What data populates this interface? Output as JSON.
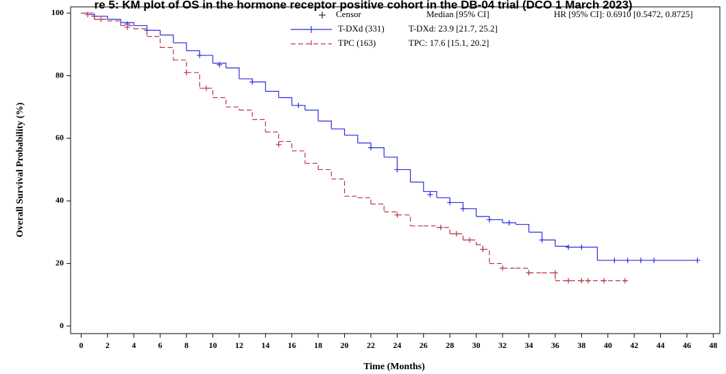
{
  "chart_data": {
    "type": "km",
    "title": "re 5: KM plot of OS in the hormone receptor positive cohort in the DB-04 trial (DCO 1 March 2023)",
    "x_label": "Time (Months)",
    "y_label": "Overall Survival Probability (%)",
    "censor_label": "Censor",
    "median_header": "Median [95% CI]",
    "hr_text": "HR [95% CI]: 0.6910 [0.5472, 0.8725]",
    "xlim": [
      -0.8,
      48.5
    ],
    "ylim": [
      -2.4,
      102
    ],
    "xticks": [
      0,
      2,
      4,
      6,
      8,
      10,
      12,
      14,
      16,
      18,
      20,
      22,
      24,
      26,
      28,
      30,
      32,
      34,
      36,
      38,
      40,
      42,
      44,
      46,
      48
    ],
    "yticks": [
      0,
      20,
      40,
      60,
      80,
      100
    ],
    "series": [
      {
        "name": "T-DXd (331)",
        "color": "#2a2ae0",
        "dashed": false,
        "median_text": "T-DXd: 23.9 [21.7, 25.2]",
        "x": [
          0,
          0.5,
          1,
          2,
          3,
          4,
          5,
          6,
          7,
          8,
          9,
          10,
          11,
          12,
          13,
          14,
          15,
          16,
          17,
          18,
          19,
          20,
          21,
          22,
          23,
          24,
          25,
          26,
          27,
          28,
          29,
          30,
          31,
          32,
          33,
          34,
          35,
          36,
          37,
          39.2,
          46.8
        ],
        "values": [
          100,
          99.5,
          99,
          98,
          97,
          96,
          94.5,
          93,
          90.5,
          88,
          86.5,
          84,
          82.5,
          79,
          78,
          75,
          73,
          70.5,
          69,
          65.5,
          63,
          61,
          58.5,
          57,
          54,
          50,
          46,
          43,
          41,
          39.5,
          37.5,
          35,
          34,
          33,
          32.5,
          30,
          27.5,
          25.5,
          25.2,
          21,
          21
        ],
        "censor_x": [
          1,
          3.5,
          5,
          9,
          10.5,
          13,
          16.5,
          22,
          24,
          26.5,
          28,
          29,
          31,
          32.5,
          35,
          37,
          38,
          40.5,
          41.5,
          42.5,
          43.5,
          46.8
        ],
        "censor_values": [
          99,
          96.5,
          94.5,
          86.5,
          83.5,
          78,
          70.5,
          57,
          50,
          42,
          39.5,
          37.5,
          34,
          33,
          27.5,
          25.2,
          25.2,
          21,
          21,
          21,
          21,
          21
        ]
      },
      {
        "name": "TPC (163)",
        "color": "#b83040",
        "dashed": true,
        "median_text": "TPC: 17.6 [15.1, 20.2]",
        "x": [
          0,
          1,
          2,
          3,
          4,
          5,
          6,
          7,
          8,
          9,
          10,
          11,
          12,
          13,
          14,
          15,
          16,
          17,
          18,
          19,
          20,
          21,
          22,
          23,
          24,
          25,
          26,
          27,
          28,
          29,
          30,
          30.5,
          31,
          32,
          33,
          34,
          35,
          36,
          41.5
        ],
        "values": [
          100,
          98,
          97.5,
          96,
          95,
          92.5,
          89,
          85,
          81,
          76,
          73,
          70,
          69,
          66,
          62,
          59,
          56,
          52,
          50,
          47,
          41.5,
          41,
          39,
          36.5,
          35.5,
          32,
          32,
          31.5,
          29.5,
          27.5,
          26,
          24.5,
          20,
          18.5,
          18.5,
          17,
          17,
          14.5,
          14.5
        ],
        "censor_x": [
          0.5,
          1.5,
          3.5,
          8,
          9.5,
          15,
          24,
          27.3,
          28.5,
          29.5,
          30.5,
          32,
          34,
          36,
          37,
          38,
          38.5,
          39.7,
          41.3
        ],
        "censor_values": [
          99.5,
          98,
          95.5,
          81,
          76,
          58,
          35.5,
          31.5,
          29.5,
          27.5,
          24.5,
          18.5,
          17,
          17,
          14.5,
          14.5,
          14.5,
          14.5,
          14.5
        ]
      }
    ]
  }
}
